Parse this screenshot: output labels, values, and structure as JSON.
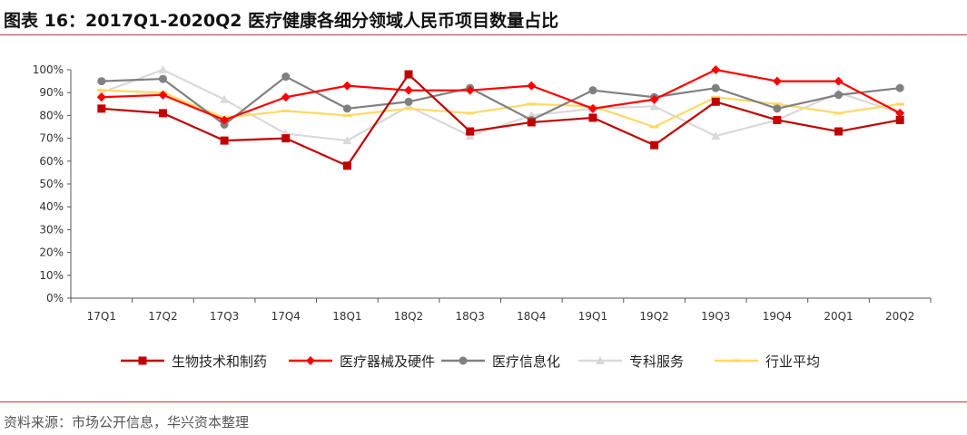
{
  "header": {
    "title": "图表 16：2017Q1-2020Q2 医疗健康各细分领域人民币项目数量占比"
  },
  "footer": {
    "source": "资料来源：市场公开信息，华兴资本整理"
  },
  "chart_data": {
    "type": "line",
    "title": "",
    "xlabel": "",
    "ylabel": "",
    "ylim": [
      0,
      100
    ],
    "y_ticks": [
      "0%",
      "10%",
      "20%",
      "30%",
      "40%",
      "50%",
      "60%",
      "70%",
      "80%",
      "90%",
      "100%"
    ],
    "grid": false,
    "legend_position": "bottom",
    "categories": [
      "17Q1",
      "17Q2",
      "17Q3",
      "17Q4",
      "18Q1",
      "18Q2",
      "18Q3",
      "18Q4",
      "19Q1",
      "19Q2",
      "19Q3",
      "19Q4",
      "20Q1",
      "20Q2"
    ],
    "series": [
      {
        "name": "生物技术和制药",
        "color": "#c00000",
        "marker": "square",
        "values": [
          83,
          81,
          69,
          70,
          58,
          98,
          73,
          77,
          79,
          67,
          86,
          78,
          73,
          78
        ]
      },
      {
        "name": "医疗器械及硬件",
        "color": "#ff0000",
        "marker": "diamond",
        "values": [
          88,
          89,
          78,
          88,
          93,
          91,
          91,
          93,
          83,
          87,
          100,
          95,
          95,
          81
        ]
      },
      {
        "name": "医疗信息化",
        "color": "#808080",
        "marker": "circle",
        "values": [
          95,
          96,
          76,
          97,
          83,
          86,
          92,
          78,
          91,
          88,
          92,
          83,
          89,
          92
        ]
      },
      {
        "name": "专科服务",
        "color": "#d9d9d9",
        "marker": "triangle",
        "values": [
          90,
          100,
          87,
          72,
          69,
          84,
          71,
          80,
          83,
          84,
          71,
          78,
          90,
          81
        ]
      },
      {
        "name": "行业平均",
        "color": "#ffd966",
        "marker": "dash",
        "values": [
          91,
          90,
          79,
          82,
          80,
          83,
          81,
          85,
          84,
          75,
          88,
          85,
          81,
          85
        ]
      }
    ]
  }
}
